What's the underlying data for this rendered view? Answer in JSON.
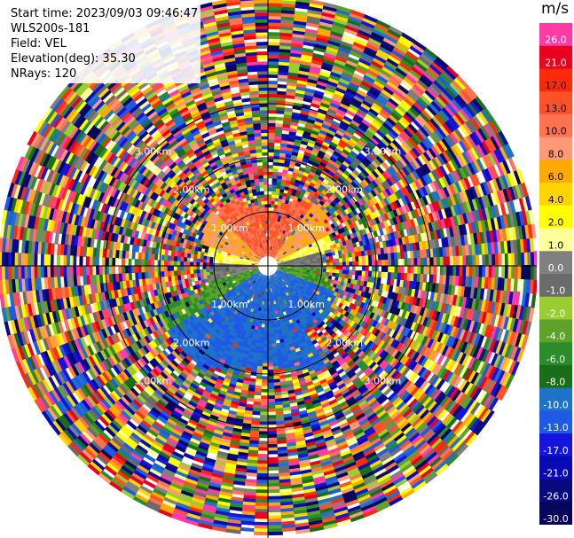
{
  "header": {
    "start_time": "Start time: 2023/09/03 09:46:47",
    "instrument": "WLS200s-181",
    "field": "Field: VEL",
    "elevation": "Elevation(deg): 35.30",
    "nrays": "NRays: 120"
  },
  "chart_data": {
    "type": "ppi",
    "field": "VEL",
    "units": "m/s",
    "elevation_deg": 35.3,
    "n_rays": 120,
    "range_rings_km": [
      1,
      2,
      3
    ],
    "range_ring_labels": [
      "1.00km",
      "2.00km",
      "3.00km"
    ],
    "colorbar": {
      "unit": "m/s",
      "ticks": [
        "26.0",
        "21.0",
        "17.0",
        "13.0",
        "10.0",
        "8.0",
        "6.0",
        "4.0",
        "2.0",
        "1.0",
        "0.0",
        "-1.0",
        "-2.0",
        "-4.0",
        "-6.0",
        "-8.0",
        "-10.0",
        "-13.0",
        "-17.0",
        "-21.0",
        "-26.0",
        "-30.0"
      ],
      "colors": [
        "#ff3ca5",
        "#e8001e",
        "#ff2a0a",
        "#ff5228",
        "#ff7350",
        "#ff9978",
        "#ffaa00",
        "#ffd500",
        "#ffff00",
        "#ffff99",
        "#808080",
        "#6b6b6b",
        "#9acd32",
        "#5ea22a",
        "#2a8c2a",
        "#1a6e1a",
        "#1e73c8",
        "#1e5ae6",
        "#1414dc",
        "#0a0ab4",
        "#0a0a80",
        "#06065a"
      ]
    }
  }
}
